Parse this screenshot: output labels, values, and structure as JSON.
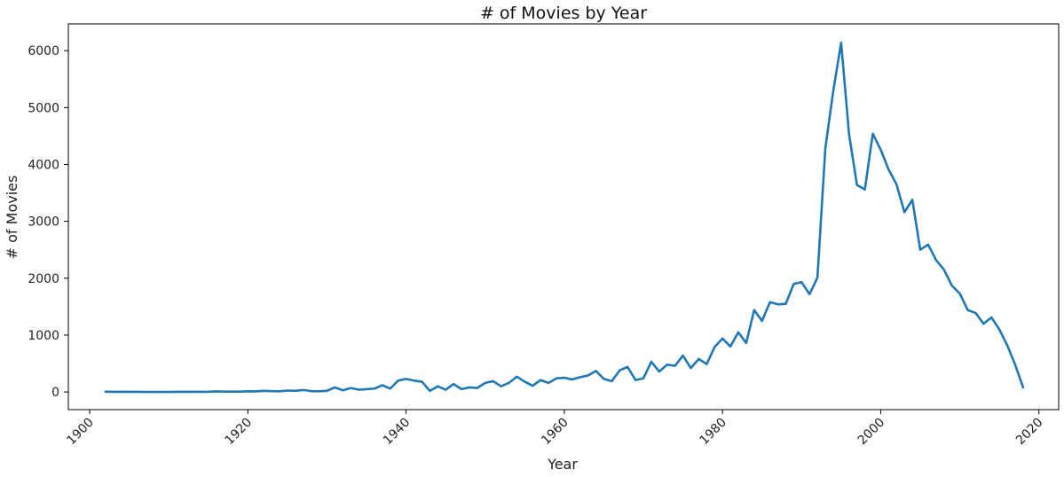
{
  "chart_data": {
    "type": "line",
    "title": "# of Movies by Year",
    "xlabel": "Year",
    "ylabel": "# of Movies",
    "xlim": [
      1897.3,
      2022.5
    ],
    "ylim": [
      -310,
      6470
    ],
    "x_ticks": [
      1900,
      1920,
      1940,
      1960,
      1980,
      2000,
      2020
    ],
    "y_ticks": [
      0,
      1000,
      2000,
      3000,
      4000,
      5000,
      6000
    ],
    "grid": false,
    "line_color": "#1f77b4",
    "series": [
      {
        "x": [
          1902,
          1903,
          1904,
          1905,
          1906,
          1907,
          1908,
          1909,
          1910,
          1911,
          1912,
          1913,
          1914,
          1915,
          1916,
          1917,
          1918,
          1919,
          1920,
          1921,
          1922,
          1923,
          1924,
          1925,
          1926,
          1927,
          1928,
          1929,
          1930,
          1931,
          1932,
          1933,
          1934,
          1935,
          1936,
          1937,
          1938,
          1939,
          1940,
          1941,
          1942,
          1943,
          1944,
          1945,
          1946,
          1947,
          1948,
          1949,
          1950,
          1951,
          1952,
          1953,
          1954,
          1955,
          1956,
          1957,
          1958,
          1959,
          1960,
          1961,
          1962,
          1963,
          1964,
          1965,
          1966,
          1967,
          1968,
          1969,
          1970,
          1971,
          1972,
          1973,
          1974,
          1975,
          1976,
          1977,
          1978,
          1979,
          1980,
          1981,
          1982,
          1983,
          1984,
          1985,
          1986,
          1987,
          1988,
          1989,
          1990,
          1991,
          1992,
          1993,
          1994,
          1995,
          1996,
          1997,
          1998,
          1999,
          2000,
          2001,
          2002,
          2003,
          2004,
          2005,
          2006,
          2007,
          2008,
          2009,
          2010,
          2011,
          2012,
          2013,
          2014,
          2015,
          2016,
          2017,
          2018
        ],
        "y": [
          5,
          3,
          2,
          2,
          2,
          1,
          1,
          1,
          1,
          2,
          2,
          3,
          3,
          4,
          10,
          7,
          6,
          6,
          12,
          10,
          20,
          15,
          12,
          25,
          20,
          35,
          15,
          12,
          20,
          80,
          30,
          70,
          40,
          50,
          60,
          120,
          60,
          200,
          230,
          200,
          180,
          20,
          100,
          40,
          140,
          50,
          80,
          70,
          160,
          190,
          100,
          160,
          270,
          180,
          110,
          210,
          160,
          240,
          250,
          220,
          260,
          290,
          370,
          230,
          190,
          380,
          440,
          210,
          240,
          530,
          360,
          480,
          460,
          640,
          420,
          580,
          490,
          790,
          940,
          800,
          1050,
          860,
          1440,
          1250,
          1580,
          1540,
          1550,
          1900,
          1930,
          1720,
          2010,
          4280,
          5290,
          6140,
          4530,
          3640,
          3560,
          4540,
          4260,
          3910,
          3650,
          3160,
          3380,
          2500,
          2590,
          2320,
          2150,
          1870,
          1730,
          1440,
          1390,
          1200,
          1310,
          1100,
          820,
          480,
          80
        ]
      }
    ]
  }
}
